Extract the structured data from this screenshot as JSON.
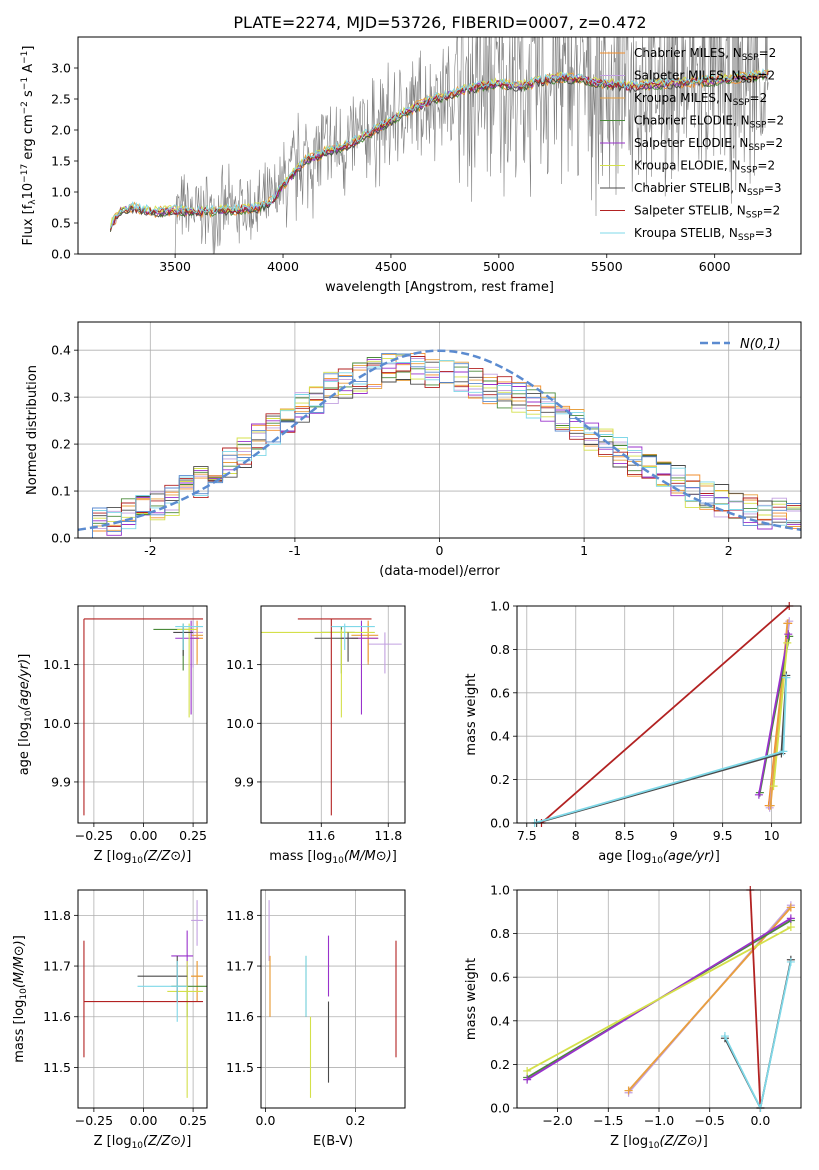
{
  "figure_title": "PLATE=2274, MJD=53726, FIBERID=0007, z=0.472",
  "colors": {
    "Chabrier MILES": "#f28e2b",
    "Salpeter MILES": "#c2a0e0",
    "Kroupa MILES": "#e8a040",
    "Chabrier ELODIE": "#4a8a3a",
    "Salpeter ELODIE": "#9932cc",
    "Kroupa ELODIE": "#d4e04a",
    "Chabrier STELIB": "#4a4a4a",
    "Salpeter STELIB": "#b22222",
    "Kroupa STELIB": "#7fd8e8",
    "normal": "#5b8bd0",
    "data": "#7f7f7f"
  },
  "chart_data": [
    {
      "id": "spectrum",
      "type": "line",
      "title": "PLATE=2274, MJD=53726, FIBERID=0007, z=0.472",
      "xlabel": "wavelength [Angstrom, rest frame]",
      "ylabel": "Flux [f_λ 10^-17 erg cm^-2 s^-1 A^-1]",
      "xlim": [
        3050,
        6400
      ],
      "ylim": [
        0,
        3.5
      ],
      "xticks": [
        3500,
        4000,
        4500,
        5000,
        5500,
        6000
      ],
      "yticks": [
        0.0,
        0.5,
        1.0,
        1.5,
        2.0,
        2.5,
        3.0
      ],
      "legend": "top-right",
      "grid": false,
      "model_curve": {
        "x": [
          3200,
          3250,
          3300,
          3400,
          3500,
          3600,
          3700,
          3800,
          3900,
          3950,
          4000,
          4100,
          4200,
          4300,
          4400,
          4500,
          4600,
          4700,
          4800,
          4900,
          5000,
          5100,
          5200,
          5300,
          5400,
          5500,
          5600,
          5800,
          6000,
          6250
        ],
        "y": [
          0.45,
          0.7,
          0.75,
          0.68,
          0.7,
          0.68,
          0.7,
          0.72,
          0.75,
          0.85,
          1.1,
          1.5,
          1.65,
          1.75,
          1.95,
          2.15,
          2.35,
          2.5,
          2.6,
          2.7,
          2.75,
          2.7,
          2.8,
          2.85,
          2.8,
          2.75,
          2.7,
          2.75,
          2.8,
          2.9
        ]
      },
      "data_curve_note": "noisy observed flux",
      "series": [
        {
          "name": "Chabrier MILES, N_SSP=2"
        },
        {
          "name": "Salpeter MILES, N_SSP=2"
        },
        {
          "name": "Kroupa MILES, N_SSP=2"
        },
        {
          "name": "Chabrier ELODIE, N_SSP=2"
        },
        {
          "name": "Salpeter ELODIE, N_SSP=2"
        },
        {
          "name": "Kroupa ELODIE, N_SSP=2"
        },
        {
          "name": "Chabrier STELIB, N_SSP=3"
        },
        {
          "name": "Salpeter STELIB, N_SSP=2"
        },
        {
          "name": "Kroupa STELIB, N_SSP=3"
        }
      ]
    },
    {
      "id": "residuals",
      "type": "line",
      "xlabel": "(data-model)/error",
      "ylabel": "Normed distribution",
      "xlim": [
        -2.5,
        2.5
      ],
      "ylim": [
        0,
        0.46
      ],
      "xticks": [
        -2,
        -1,
        0,
        1,
        2
      ],
      "yticks": [
        0.0,
        0.1,
        0.2,
        0.3,
        0.4
      ],
      "grid": true,
      "legend": "top-right",
      "normal_label": "N(0,1)",
      "hist_base": [
        0.02,
        0.03,
        0.04,
        0.05,
        0.06,
        0.07,
        0.08,
        0.1,
        0.12,
        0.14,
        0.16,
        0.18,
        0.21,
        0.23,
        0.26,
        0.28,
        0.3,
        0.32,
        0.33,
        0.34,
        0.35,
        0.36,
        0.37,
        0.36,
        0.35,
        0.35,
        0.34,
        0.33,
        0.32,
        0.31,
        0.3,
        0.29,
        0.28,
        0.26,
        0.24,
        0.22,
        0.2,
        0.18,
        0.16,
        0.15,
        0.13,
        0.12,
        0.1,
        0.09,
        0.08,
        0.07,
        0.06,
        0.05,
        0.05,
        0.05
      ]
    },
    {
      "id": "age_vs_Z",
      "type": "scatter",
      "xlabel": "Z [log10(Z/Z⊙)]",
      "ylabel": "age  [log10(age/yr)]",
      "xlim": [
        -0.33,
        0.32
      ],
      "ylim": [
        9.83,
        10.2
      ],
      "xticks": [
        -0.25,
        0.0,
        0.25
      ],
      "xticklabels": [
        "−0.25",
        "0.00",
        "0.25"
      ],
      "yticks": [
        9.9,
        10.0,
        10.1
      ],
      "yticklabels": [
        "9.9",
        "10.0",
        "10.1"
      ],
      "grid": true,
      "points": [
        {
          "name": "Chabrier MILES",
          "x": 0.27,
          "y": 10.145,
          "xerr": [
            0.03,
            0.03
          ],
          "yerr": [
            0.04,
            0.03
          ]
        },
        {
          "name": "Salpeter MILES",
          "x": 0.25,
          "y": 10.155,
          "xerr": [
            0.05,
            0.05
          ],
          "yerr": [
            0.06,
            0.02
          ]
        },
        {
          "name": "Kroupa MILES",
          "x": 0.27,
          "y": 10.15,
          "xerr": [
            0.03,
            0.03
          ],
          "yerr": [
            0.05,
            0.02
          ]
        },
        {
          "name": "Chabrier ELODIE",
          "x": 0.2,
          "y": 10.16,
          "xerr": [
            0.15,
            0.05
          ],
          "yerr": [
            0.07,
            0.01
          ]
        },
        {
          "name": "Salpeter ELODIE",
          "x": 0.24,
          "y": 10.145,
          "xerr": [
            0.08,
            0.04
          ],
          "yerr": [
            0.13,
            0.03
          ]
        },
        {
          "name": "Kroupa ELODIE",
          "x": 0.23,
          "y": 10.16,
          "xerr": [
            0.06,
            0.04
          ],
          "yerr": [
            0.15,
            0.01
          ]
        },
        {
          "name": "Chabrier STELIB",
          "x": 0.2,
          "y": 10.155,
          "xerr": [
            0.05,
            0.05
          ],
          "yerr": [
            0.04,
            0.01
          ]
        },
        {
          "name": "Salpeter STELIB",
          "x": -0.3,
          "y": 10.178,
          "xerr": [
            0.0,
            0.6
          ],
          "yerr": [
            0.335,
            0.0
          ]
        },
        {
          "name": "Kroupa STELIB",
          "x": 0.2,
          "y": 10.165,
          "xerr": [
            0.04,
            0.1
          ],
          "yerr": [
            0.04,
            0.005
          ]
        }
      ]
    },
    {
      "id": "age_vs_mass",
      "type": "scatter",
      "xlabel": "mass [log10(M/M⊙)]",
      "xlim": [
        11.42,
        11.85
      ],
      "ylim": [
        9.83,
        10.2
      ],
      "xticks": [
        11.6,
        11.8
      ],
      "xticklabels": [
        "11.6",
        "11.8"
      ],
      "yticks": [
        9.9,
        10.0,
        10.1
      ],
      "yticklabels": [
        "9.9",
        "10.0",
        "10.1"
      ],
      "grid": true,
      "points": [
        {
          "name": "Chabrier MILES",
          "x": 11.74,
          "y": 10.145,
          "xerr": [
            0.05,
            0.03
          ],
          "yerr": [
            0.04,
            0.03
          ]
        },
        {
          "name": "Salpeter MILES",
          "x": 11.79,
          "y": 10.135,
          "xerr": [
            0.05,
            0.05
          ],
          "yerr": [
            0.05,
            0.02
          ]
        },
        {
          "name": "Kroupa MILES",
          "x": 11.74,
          "y": 10.15,
          "xerr": [
            0.05,
            0.03
          ],
          "yerr": [
            0.05,
            0.02
          ]
        },
        {
          "name": "Chabrier ELODIE",
          "x": 11.66,
          "y": 10.155,
          "xerr": [
            0.06,
            0.04
          ],
          "yerr": [
            0.07,
            0.01
          ]
        },
        {
          "name": "Salpeter ELODIE",
          "x": 11.72,
          "y": 10.145,
          "xerr": [
            0.06,
            0.05
          ],
          "yerr": [
            0.13,
            0.03
          ]
        },
        {
          "name": "Kroupa ELODIE",
          "x": 11.66,
          "y": 10.155,
          "xerr": [
            0.25,
            0.1
          ],
          "yerr": [
            0.145,
            0.005
          ]
        },
        {
          "name": "Chabrier STELIB",
          "x": 11.68,
          "y": 10.145,
          "xerr": [
            0.1,
            0.03
          ],
          "yerr": [
            0.04,
            0.01
          ]
        },
        {
          "name": "Salpeter STELIB",
          "x": 11.63,
          "y": 10.178,
          "xerr": [
            0.1,
            0.12
          ],
          "yerr": [
            0.335,
            0.0
          ]
        },
        {
          "name": "Kroupa STELIB",
          "x": 11.67,
          "y": 10.165,
          "xerr": [
            0.04,
            0.09
          ],
          "yerr": [
            0.04,
            0.005
          ]
        }
      ]
    },
    {
      "id": "weight_vs_age",
      "type": "line",
      "xlabel": "age  [log10(age/yr)]",
      "ylabel": "mass weight",
      "xlim": [
        7.4,
        10.3
      ],
      "ylim": [
        0,
        1.0
      ],
      "xticks": [
        7.5,
        8.0,
        8.5,
        9.0,
        9.5,
        10.0
      ],
      "yticks": [
        0.0,
        0.2,
        0.4,
        0.6,
        0.8,
        1.0
      ],
      "grid": true,
      "series": [
        {
          "name": "Chabrier MILES",
          "x": [
            9.97,
            10.17
          ],
          "y": [
            0.08,
            0.92
          ]
        },
        {
          "name": "Salpeter MILES",
          "x": [
            9.98,
            10.18
          ],
          "y": [
            0.07,
            0.93
          ]
        },
        {
          "name": "Kroupa MILES",
          "x": [
            9.99,
            10.16
          ],
          "y": [
            0.08,
            0.92
          ]
        },
        {
          "name": "Chabrier ELODIE",
          "x": [
            9.88,
            10.18
          ],
          "y": [
            0.14,
            0.86
          ]
        },
        {
          "name": "Salpeter ELODIE",
          "x": [
            9.87,
            10.17
          ],
          "y": [
            0.13,
            0.87
          ]
        },
        {
          "name": "Kroupa ELODIE",
          "x": [
            10.02,
            10.16
          ],
          "y": [
            0.17,
            0.83
          ]
        },
        {
          "name": "Chabrier STELIB",
          "x": [
            7.6,
            10.1,
            10.15
          ],
          "y": [
            0.0,
            0.32,
            0.68
          ]
        },
        {
          "name": "Salpeter STELIB",
          "x": [
            7.65,
            10.18
          ],
          "y": [
            0.0,
            1.0
          ]
        },
        {
          "name": "Kroupa STELIB",
          "x": [
            7.58,
            10.12,
            10.15
          ],
          "y": [
            0.0,
            0.33,
            0.67
          ]
        }
      ]
    },
    {
      "id": "mass_vs_Z",
      "type": "scatter",
      "xlabel": "Z [log10(Z/Z⊙)]",
      "ylabel": "mass [log10(M/M⊙)]",
      "xlim": [
        -0.33,
        0.32
      ],
      "ylim": [
        11.42,
        11.85
      ],
      "xticks": [
        -0.25,
        0.0,
        0.25
      ],
      "xticklabels": [
        "−0.25",
        "0.00",
        "0.25"
      ],
      "yticks": [
        11.5,
        11.6,
        11.7,
        11.8
      ],
      "yticklabels": [
        "11.5",
        "11.6",
        "11.7",
        "11.8"
      ],
      "grid": true,
      "points": [
        {
          "name": "Chabrier MILES",
          "x": 0.27,
          "y": 11.68,
          "xerr": [
            0.03,
            0.03
          ],
          "yerr": [
            0.05,
            0.03
          ]
        },
        {
          "name": "Salpeter MILES",
          "x": 0.27,
          "y": 11.79,
          "xerr": [
            0.03,
            0.03
          ],
          "yerr": [
            0.05,
            0.04
          ]
        },
        {
          "name": "Kroupa MILES",
          "x": 0.27,
          "y": 11.68,
          "xerr": [
            0.03,
            0.03
          ],
          "yerr": [
            0.05,
            0.03
          ]
        },
        {
          "name": "Chabrier ELODIE",
          "x": 0.22,
          "y": 11.66,
          "xerr": [
            0.08,
            0.1
          ],
          "yerr": [
            0.06,
            0.04
          ]
        },
        {
          "name": "Salpeter ELODIE",
          "x": 0.22,
          "y": 11.72,
          "xerr": [
            0.08,
            0.03
          ],
          "yerr": [
            0.06,
            0.05
          ]
        },
        {
          "name": "Kroupa ELODIE",
          "x": 0.22,
          "y": 11.65,
          "xerr": [
            0.1,
            0.08
          ],
          "yerr": [
            0.21,
            0.06
          ]
        },
        {
          "name": "Chabrier STELIB",
          "x": 0.17,
          "y": 11.68,
          "xerr": [
            0.2,
            0.05
          ],
          "yerr": [
            0.05,
            0.04
          ]
        },
        {
          "name": "Salpeter STELIB",
          "x": -0.3,
          "y": 11.63,
          "xerr": [
            0.0,
            0.6
          ],
          "yerr": [
            0.11,
            0.12
          ]
        },
        {
          "name": "Kroupa STELIB",
          "x": 0.17,
          "y": 11.66,
          "xerr": [
            0.2,
            0.05
          ],
          "yerr": [
            0.07,
            0.05
          ]
        }
      ]
    },
    {
      "id": "mass_vs_ebv",
      "type": "scatter",
      "xlabel": "E(B-V)",
      "xlim": [
        -0.01,
        0.31
      ],
      "ylim": [
        11.42,
        11.85
      ],
      "xticks": [
        0.0,
        0.2
      ],
      "xticklabels": [
        "0.0",
        "0.2"
      ],
      "yticks": [
        11.5,
        11.6,
        11.7,
        11.8
      ],
      "yticklabels": [
        "11.5",
        "11.6",
        "11.7",
        "11.8"
      ],
      "grid": true,
      "points": [
        {
          "name": "Chabrier MILES",
          "x": 0.01,
          "y": 11.66,
          "yerr": [
            0.06,
            0.06
          ]
        },
        {
          "name": "Salpeter MILES",
          "x": 0.008,
          "y": 11.76,
          "yerr": [
            0.05,
            0.07
          ]
        },
        {
          "name": "Kroupa MILES",
          "x": 0.01,
          "y": 11.66,
          "yerr": [
            0.06,
            0.06
          ]
        },
        {
          "name": "Chabrier ELODIE",
          "x": 0.09,
          "y": 11.66,
          "yerr": [
            0.06,
            0.06
          ]
        },
        {
          "name": "Salpeter ELODIE",
          "x": 0.14,
          "y": 11.7,
          "yerr": [
            0.06,
            0.06
          ]
        },
        {
          "name": "Kroupa ELODIE",
          "x": 0.1,
          "y": 11.52,
          "yerr": [
            0.08,
            0.08
          ]
        },
        {
          "name": "Chabrier STELIB",
          "x": 0.14,
          "y": 11.55,
          "yerr": [
            0.08,
            0.08
          ]
        },
        {
          "name": "Salpeter STELIB",
          "x": 0.29,
          "y": 11.63,
          "yerr": [
            0.11,
            0.12
          ]
        },
        {
          "name": "Kroupa STELIB",
          "x": 0.09,
          "y": 11.66,
          "yerr": [
            0.06,
            0.06
          ]
        }
      ]
    },
    {
      "id": "weight_vs_Z",
      "type": "line",
      "xlabel": "Z [log10(Z/Z⊙)]",
      "ylabel": "mass weight",
      "xlim": [
        -2.4,
        0.4
      ],
      "ylim": [
        0,
        1.0
      ],
      "xticks": [
        -2.0,
        -1.5,
        -1.0,
        -0.5,
        0.0
      ],
      "xticklabels": [
        "−2.0",
        "−1.5",
        "−1.0",
        "−0.5",
        "0.0"
      ],
      "yticks": [
        0.0,
        0.2,
        0.4,
        0.6,
        0.8,
        1.0
      ],
      "grid": true,
      "series": [
        {
          "name": "Chabrier MILES",
          "x": [
            -1.3,
            0.3
          ],
          "y": [
            0.08,
            0.92
          ]
        },
        {
          "name": "Salpeter MILES",
          "x": [
            -1.3,
            0.3
          ],
          "y": [
            0.07,
            0.93
          ]
        },
        {
          "name": "Kroupa MILES",
          "x": [
            -1.3,
            0.3
          ],
          "y": [
            0.08,
            0.92
          ]
        },
        {
          "name": "Chabrier ELODIE",
          "x": [
            -2.3,
            0.3
          ],
          "y": [
            0.14,
            0.86
          ]
        },
        {
          "name": "Salpeter ELODIE",
          "x": [
            -2.3,
            0.3
          ],
          "y": [
            0.13,
            0.87
          ]
        },
        {
          "name": "Kroupa ELODIE",
          "x": [
            -2.3,
            0.3
          ],
          "y": [
            0.17,
            0.83
          ]
        },
        {
          "name": "Chabrier STELIB",
          "x": [
            -0.35,
            0.0,
            0.3
          ],
          "y": [
            0.32,
            0.0,
            0.68
          ]
        },
        {
          "name": "Salpeter STELIB",
          "x": [
            -0.1,
            0.0
          ],
          "y": [
            1.0,
            0.0
          ]
        },
        {
          "name": "Kroupa STELIB",
          "x": [
            -0.35,
            0.0,
            0.3
          ],
          "y": [
            0.33,
            0.0,
            0.67
          ]
        }
      ]
    }
  ]
}
